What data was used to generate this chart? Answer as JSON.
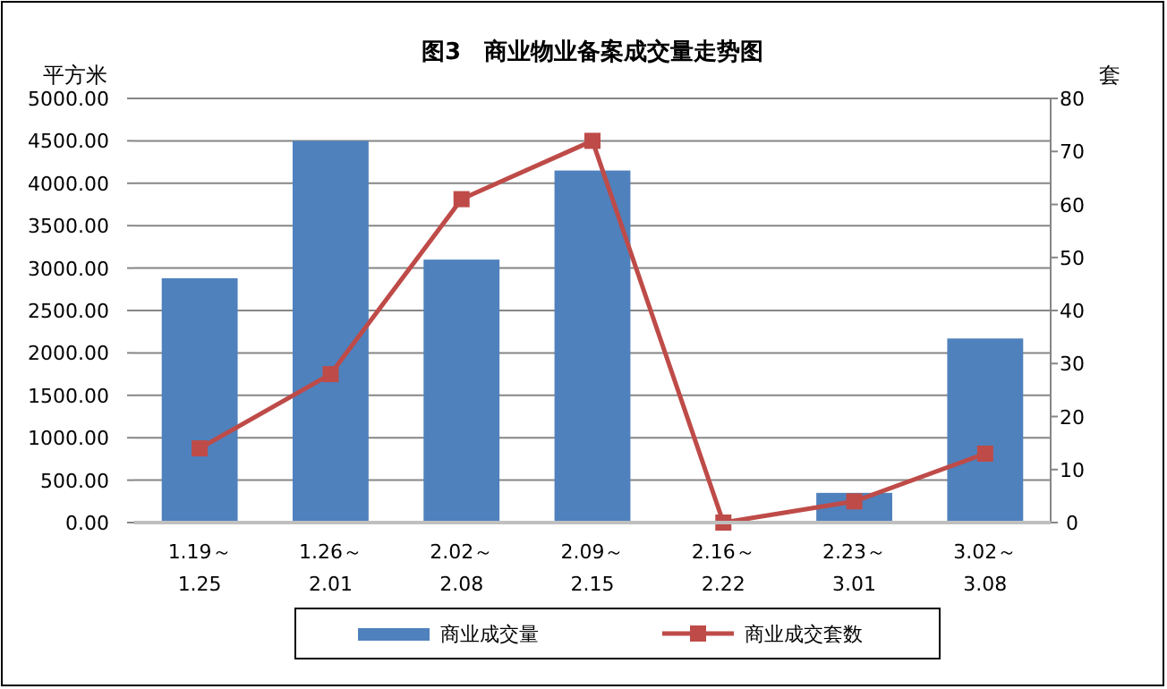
{
  "chart_data": {
    "type": "bar",
    "title": "图3　商业物业备案成交量走势图",
    "ylabel": "平方米",
    "y2label": "套",
    "categories": [
      "1.19～\n1.25",
      "1.26～\n2.01",
      "2.02～\n2.08",
      "2.09～\n2.15",
      "2.16～\n2.22",
      "2.23～\n3.01",
      "3.02～\n3.08"
    ],
    "series": [
      {
        "name": "商业成交量",
        "color": "#4f81bd",
        "values": [
          2880,
          4500,
          3100,
          4150,
          0,
          350,
          2170
        ]
      },
      {
        "name": "商业成交套数",
        "type": "line",
        "axis": "y2",
        "color": "#be4b48",
        "marker": "square",
        "values": [
          14,
          28,
          61,
          72,
          0,
          4,
          13
        ]
      }
    ],
    "ylim": [
      0,
      5000
    ],
    "yticks": [
      {
        "value": 0,
        "label": "0.00"
      },
      {
        "value": 500,
        "label": "500.00"
      },
      {
        "value": 1000,
        "label": "1000.00"
      },
      {
        "value": 1500,
        "label": "1500.00"
      },
      {
        "value": 2000,
        "label": "2000.00"
      },
      {
        "value": 2500,
        "label": "2500.00"
      },
      {
        "value": 3000,
        "label": "3000.00"
      },
      {
        "value": 3500,
        "label": "3500.00"
      },
      {
        "value": 4000,
        "label": "4000.00"
      },
      {
        "value": 4500,
        "label": "4500.00"
      },
      {
        "value": 5000,
        "label": "5000.00"
      }
    ],
    "y2lim": [
      0,
      80
    ],
    "y2ticks": [
      0,
      10,
      20,
      30,
      40,
      50,
      60,
      70,
      80
    ],
    "grid": "y",
    "legend": "bottom"
  }
}
